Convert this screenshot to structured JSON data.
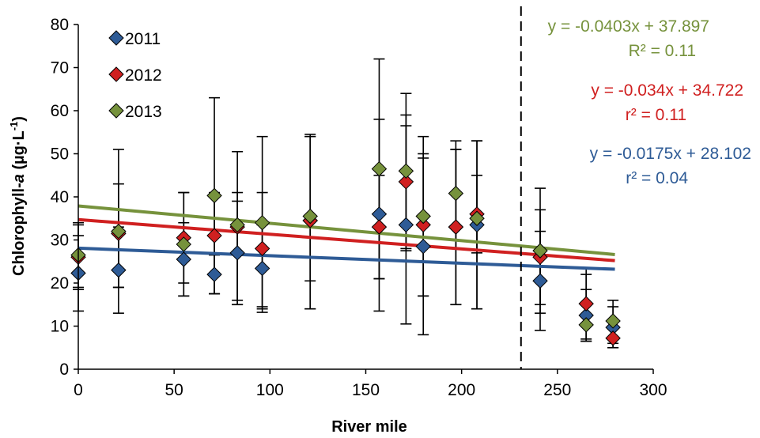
{
  "chart_data": {
    "type": "scatter",
    "xlabel": "River mile",
    "ylabel_prefix": "Chlorophyll-",
    "ylabel_italic": "a",
    "ylabel_suffix": " (µg·L",
    "ylabel_sup": "-1",
    "ylabel_close": ")",
    "xlim": [
      0,
      300
    ],
    "ylim": [
      0,
      80
    ],
    "x_ticks": [
      0,
      50,
      100,
      150,
      200,
      250,
      300
    ],
    "y_ticks": [
      0,
      10,
      20,
      30,
      40,
      50,
      60,
      70,
      80
    ],
    "x_tick_labels": [
      "0",
      "50",
      "100",
      "150",
      "200",
      "250",
      "300"
    ],
    "y_tick_labels": [
      "0",
      "10",
      "20",
      "30",
      "40",
      "50",
      "60",
      "70",
      "80"
    ],
    "grid": false,
    "legend_position": "top-left",
    "reference_line_x": 231,
    "series": [
      {
        "name": "2011",
        "color": "#2e5b96",
        "trend": {
          "slope": -0.0175,
          "intercept": 28.102
        },
        "equation": "y = -0.0175x + 28.102",
        "r2_text": "r² = 0.04",
        "points": [
          {
            "x": 0,
            "y": 22.3,
            "lo": 13.5,
            "hi": 31
          },
          {
            "x": 21,
            "y": 23.0,
            "lo": 13,
            "hi": 33
          },
          {
            "x": 55,
            "y": 25.5,
            "lo": 17,
            "hi": 34
          },
          {
            "x": 71,
            "y": 22.0,
            "lo": 17.5,
            "hi": 26.5
          },
          {
            "x": 83,
            "y": 27.0,
            "lo": 15,
            "hi": 39
          },
          {
            "x": 96,
            "y": 23.4,
            "lo": 13.2,
            "hi": 33.5
          },
          {
            "x": 121,
            "y": 34.5,
            "lo": 14,
            "hi": 54.5
          },
          {
            "x": 157,
            "y": 36.0,
            "lo": 13.5,
            "hi": 58
          },
          {
            "x": 171,
            "y": 33.5,
            "lo": 10.5,
            "hi": 56.5
          },
          {
            "x": 180,
            "y": 28.5,
            "lo": 8,
            "hi": 49
          },
          {
            "x": 197,
            "y": 33.0,
            "lo": 15,
            "hi": 51
          },
          {
            "x": 208,
            "y": 33.5,
            "lo": 14,
            "hi": 53
          },
          {
            "x": 241,
            "y": 20.5,
            "lo": 9,
            "hi": 32
          },
          {
            "x": 265,
            "y": 12.5,
            "lo": 6.5,
            "hi": 18.5
          },
          {
            "x": 279,
            "y": 9.7,
            "lo": 5,
            "hi": 14.5
          }
        ]
      },
      {
        "name": "2012",
        "color": "#d02020",
        "trend": {
          "slope": -0.034,
          "intercept": 34.722
        },
        "equation": "y = -0.034x + 34.722",
        "r2_text": "r² = 0.11",
        "points": [
          {
            "x": 0,
            "y": 26.0,
            "lo": 18.5,
            "hi": 33.5
          },
          {
            "x": 21,
            "y": 31.5,
            "lo": 19,
            "hi": 43
          },
          {
            "x": 55,
            "y": 30.5,
            "lo": 20,
            "hi": 41
          },
          {
            "x": 71,
            "y": 31.0,
            "lo": 17.5,
            "hi": 41
          },
          {
            "x": 83,
            "y": 33.0,
            "lo": 16,
            "hi": 41
          },
          {
            "x": 96,
            "y": 28.0,
            "lo": 14.5,
            "hi": 41
          },
          {
            "x": 121,
            "y": 34.5,
            "lo": 14,
            "hi": 54
          },
          {
            "x": 157,
            "y": 33.0,
            "lo": 21,
            "hi": 45
          },
          {
            "x": 171,
            "y": 43.5,
            "lo": 27.5,
            "hi": 59
          },
          {
            "x": 180,
            "y": 33.5,
            "lo": 17,
            "hi": 50
          },
          {
            "x": 197,
            "y": 33.0,
            "lo": 15,
            "hi": 51
          },
          {
            "x": 208,
            "y": 36.0,
            "lo": 27,
            "hi": 45
          },
          {
            "x": 241,
            "y": 26.0,
            "lo": 15,
            "hi": 37
          },
          {
            "x": 265,
            "y": 15.2,
            "lo": 7,
            "hi": 23.5
          },
          {
            "x": 279,
            "y": 7.2,
            "lo": 5,
            "hi": 10
          }
        ]
      },
      {
        "name": "2013",
        "color": "#76923c",
        "trend": {
          "slope": -0.0403,
          "intercept": 37.897
        },
        "equation": "y = -0.0403x + 37.897",
        "r2_text": "R² = 0.11",
        "points": [
          {
            "x": 0,
            "y": 26.5,
            "lo": 19,
            "hi": 34
          },
          {
            "x": 21,
            "y": 32.0,
            "lo": 19,
            "hi": 51
          },
          {
            "x": 55,
            "y": 29.0,
            "lo": 17,
            "hi": 41
          },
          {
            "x": 71,
            "y": 40.3,
            "lo": 17.5,
            "hi": 63
          },
          {
            "x": 83,
            "y": 33.5,
            "lo": 15,
            "hi": 50.5
          },
          {
            "x": 96,
            "y": 34.0,
            "lo": 14,
            "hi": 54
          },
          {
            "x": 121,
            "y": 35.5,
            "lo": 20.5,
            "hi": 54
          },
          {
            "x": 157,
            "y": 46.5,
            "lo": 21,
            "hi": 72
          },
          {
            "x": 171,
            "y": 46.0,
            "lo": 28,
            "hi": 64
          },
          {
            "x": 180,
            "y": 35.5,
            "lo": 17,
            "hi": 54
          },
          {
            "x": 197,
            "y": 40.8,
            "lo": 28,
            "hi": 53
          },
          {
            "x": 208,
            "y": 35.0,
            "lo": 14,
            "hi": 53
          },
          {
            "x": 241,
            "y": 27.5,
            "lo": 13,
            "hi": 42
          },
          {
            "x": 265,
            "y": 10.3,
            "lo": 6.5,
            "hi": 22
          },
          {
            "x": 279,
            "y": 11.2,
            "lo": 6,
            "hi": 16
          }
        ]
      }
    ]
  }
}
